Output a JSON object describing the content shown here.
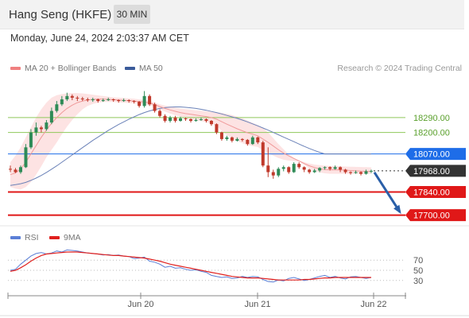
{
  "header": {
    "title": "Hang Seng (HKFE)",
    "timeframe": "30 MIN",
    "datetime": "Monday, June 24, 2024 2:03:37 AM CET"
  },
  "legend": {
    "ma20_label": "MA 20 + Bollinger Bands",
    "ma50_label": "MA 50",
    "ma20_color": "#f08080",
    "ma50_color": "#3a5b9a",
    "credit": "Research © 2024 Trading Central"
  },
  "rsi_legend": {
    "rsi_label": "RSI",
    "ma_label": "9MA",
    "rsi_color": "#5b7fd6",
    "ma_color": "#e0201e"
  },
  "chart_data": [
    {
      "type": "candlestick",
      "ylim": [
        17655,
        18520
      ],
      "x_ticks": [
        "Jun 20",
        "Jun 21",
        "Jun 22"
      ],
      "candles": [
        [
          17980,
          17975,
          18000,
          17960
        ],
        [
          17975,
          17960,
          17985,
          17955
        ],
        [
          17960,
          17990,
          18000,
          17950
        ],
        [
          17990,
          18110,
          18130,
          17985
        ],
        [
          18110,
          18200,
          18220,
          18100
        ],
        [
          18200,
          18230,
          18260,
          18180
        ],
        [
          18230,
          18220,
          18240,
          18200
        ],
        [
          18220,
          18260,
          18275,
          18210
        ],
        [
          18260,
          18330,
          18350,
          18250
        ],
        [
          18330,
          18370,
          18390,
          18320
        ],
        [
          18370,
          18400,
          18420,
          18360
        ],
        [
          18400,
          18420,
          18440,
          18390
        ],
        [
          18420,
          18410,
          18430,
          18395
        ],
        [
          18410,
          18405,
          18420,
          18390
        ],
        [
          18405,
          18400,
          18415,
          18390
        ],
        [
          18400,
          18395,
          18410,
          18385
        ],
        [
          18395,
          18400,
          18410,
          18385
        ],
        [
          18400,
          18390,
          18405,
          18380
        ],
        [
          18390,
          18395,
          18405,
          18385
        ],
        [
          18395,
          18400,
          18410,
          18390
        ],
        [
          18400,
          18395,
          18405,
          18385
        ],
        [
          18395,
          18390,
          18400,
          18380
        ],
        [
          18390,
          18395,
          18405,
          18385
        ],
        [
          18395,
          18390,
          18400,
          18380
        ],
        [
          18390,
          18385,
          18395,
          18375
        ],
        [
          18385,
          18360,
          18390,
          18350
        ],
        [
          18360,
          18420,
          18450,
          18350
        ],
        [
          18420,
          18370,
          18430,
          18360
        ],
        [
          18370,
          18330,
          18380,
          18320
        ],
        [
          18330,
          18300,
          18340,
          18290
        ],
        [
          18300,
          18270,
          18310,
          18260
        ],
        [
          18270,
          18290,
          18300,
          18260
        ],
        [
          18290,
          18270,
          18300,
          18260
        ],
        [
          18270,
          18285,
          18295,
          18265
        ],
        [
          18285,
          18280,
          18290,
          18270
        ],
        [
          18280,
          18270,
          18285,
          18260
        ],
        [
          18270,
          18275,
          18285,
          18265
        ],
        [
          18275,
          18280,
          18290,
          18270
        ],
        [
          18280,
          18270,
          18285,
          18260
        ],
        [
          18270,
          18250,
          18275,
          18240
        ],
        [
          18250,
          18200,
          18255,
          18190
        ],
        [
          18200,
          18160,
          18205,
          18150
        ],
        [
          18160,
          18170,
          18180,
          18150
        ],
        [
          18170,
          18150,
          18175,
          18140
        ],
        [
          18150,
          18160,
          18170,
          18145
        ],
        [
          18160,
          18155,
          18165,
          18145
        ],
        [
          18155,
          18130,
          18160,
          18120
        ],
        [
          18130,
          18170,
          18180,
          18125
        ],
        [
          18170,
          18140,
          18175,
          18130
        ],
        [
          18140,
          18000,
          18150,
          17990
        ],
        [
          18000,
          17960,
          18110,
          17930
        ],
        [
          17960,
          17940,
          17975,
          17920
        ],
        [
          17940,
          17980,
          17990,
          17930
        ],
        [
          17980,
          17990,
          18000,
          17965
        ],
        [
          17990,
          17960,
          17995,
          17950
        ],
        [
          17960,
          18010,
          18020,
          17955
        ],
        [
          18010,
          17990,
          18020,
          17980
        ],
        [
          17990,
          17975,
          17995,
          17960
        ],
        [
          17975,
          17960,
          17980,
          17950
        ],
        [
          17960,
          17970,
          17980,
          17955
        ],
        [
          17970,
          17985,
          17990,
          17960
        ],
        [
          17985,
          17990,
          17995,
          17975
        ],
        [
          17990,
          17980,
          17995,
          17970
        ],
        [
          17980,
          17990,
          18000,
          17975
        ],
        [
          17990,
          17975,
          17995,
          17960
        ],
        [
          17975,
          17960,
          17980,
          17950
        ],
        [
          17960,
          17955,
          17965,
          17945
        ],
        [
          17955,
          17960,
          17970,
          17950
        ],
        [
          17960,
          17950,
          17965,
          17940
        ],
        [
          17950,
          17965,
          17975,
          17945
        ],
        [
          17965,
          17968,
          17975,
          17955
        ]
      ],
      "ma20": [
        17945,
        17955,
        17980,
        18020,
        18070,
        18120,
        18170,
        18215,
        18255,
        18290,
        18320,
        18345,
        18365,
        18380,
        18390,
        18396,
        18400,
        18402,
        18402,
        18400,
        18398,
        18396,
        18394,
        18392,
        18390,
        18386,
        18384,
        18378,
        18368,
        18356,
        18345,
        18336,
        18328,
        18320,
        18314,
        18310,
        18305,
        18300,
        18296,
        18290,
        18280,
        18265,
        18250,
        18236,
        18222,
        18210,
        18198,
        18190,
        18180,
        18160,
        18140,
        18118,
        18095,
        18075,
        18058,
        18043,
        18028,
        18012,
        17998,
        17988,
        17980,
        17976,
        17974,
        17974,
        17973,
        17972,
        17970,
        17968,
        17966,
        17965,
        17964
      ],
      "bb_upper": [
        18020,
        18060,
        18110,
        18170,
        18230,
        18290,
        18340,
        18380,
        18410,
        18425,
        18432,
        18436,
        18438,
        18438,
        18436,
        18432,
        18428,
        18424,
        18420,
        18416,
        18412,
        18410,
        18408,
        18406,
        18404,
        18400,
        18396,
        18390,
        18380,
        18370,
        18362,
        18356,
        18350,
        18345,
        18341,
        18338,
        18334,
        18331,
        18328,
        18325,
        18322,
        18318,
        18312,
        18305,
        18296,
        18285,
        18272,
        18258,
        18244,
        18228,
        18200,
        18165,
        18130,
        18098,
        18068,
        18045,
        18030,
        18020,
        18012,
        18006,
        18002,
        17999,
        17997,
        17996,
        17995,
        17994,
        17993,
        17992,
        17991,
        17990,
        17989
      ],
      "bb_lower": [
        17870,
        17860,
        17855,
        17870,
        17900,
        17945,
        17995,
        18050,
        18095,
        18140,
        18190,
        18235,
        18275,
        18310,
        18340,
        18360,
        18372,
        18380,
        18384,
        18384,
        18384,
        18382,
        18380,
        18378,
        18376,
        18372,
        18370,
        18364,
        18354,
        18340,
        18326,
        18314,
        18304,
        18295,
        18287,
        18280,
        18274,
        18268,
        18262,
        18255,
        18240,
        18210,
        18185,
        18165,
        18148,
        18135,
        18124,
        18118,
        18112,
        18092,
        18075,
        18060,
        18045,
        18035,
        18030,
        18027,
        18024,
        18004,
        17982,
        17968,
        17958,
        17953,
        17950,
        17950,
        17950,
        17950,
        17950,
        17950,
        17950,
        17950,
        17950
      ],
      "ma50": [
        17880,
        17884,
        17890,
        17898,
        17910,
        17924,
        17940,
        17958,
        17978,
        17998,
        18020,
        18042,
        18064,
        18086,
        18108,
        18130,
        18152,
        18172,
        18192,
        18212,
        18230,
        18248,
        18264,
        18280,
        18294,
        18308,
        18320,
        18330,
        18338,
        18345,
        18350,
        18353,
        18354,
        18354,
        18352,
        18349,
        18345,
        18340,
        18334,
        18327,
        18320,
        18312,
        18303,
        18294,
        18285,
        18275,
        18264,
        18252,
        18240,
        18227,
        18214,
        18200,
        18186,
        18172,
        18158,
        18144,
        18130,
        18116,
        18103,
        18091,
        18080,
        18070,
        18070,
        18070,
        18070,
        18070,
        18070,
        18070,
        18070,
        18070,
        18070
      ],
      "levels": [
        {
          "value": 18290,
          "label": "18290.00",
          "color": "#8fc85a",
          "style": "thin"
        },
        {
          "value": 18200,
          "label": "18200.00",
          "color": "#8fc85a",
          "style": "thin"
        },
        {
          "value": 18070,
          "label": "18070.00",
          "color": "#1e6de8",
          "style": "main"
        },
        {
          "value": 17968,
          "label": "17968.00",
          "color": "#333333",
          "style": "current"
        },
        {
          "value": 17840,
          "label": "17840.00",
          "color": "#e01818",
          "style": "thick"
        },
        {
          "value": 17700,
          "label": "17700.00",
          "color": "#e01818",
          "style": "thick"
        }
      ],
      "projection": {
        "from": 17968,
        "to": 17700
      },
      "up_color": "#2e8b57",
      "down_color": "#c0392b"
    },
    {
      "type": "line",
      "ylim": [
        0,
        100
      ],
      "levels": [
        70,
        50,
        30
      ],
      "rsi": [
        50,
        52,
        62,
        70,
        78,
        83,
        85,
        82,
        84,
        88,
        86,
        90,
        89,
        88,
        86,
        84,
        83,
        82,
        80,
        81,
        79,
        80,
        78,
        77,
        73,
        74,
        76,
        68,
        66,
        62,
        56,
        58,
        54,
        55,
        52,
        50,
        51,
        48,
        46,
        40,
        38,
        36,
        37,
        34,
        35,
        38,
        36,
        38,
        37,
        32,
        28,
        27,
        31,
        29,
        34,
        36,
        33,
        30,
        32,
        35,
        38,
        40,
        36,
        38,
        35,
        33,
        37,
        38,
        36,
        34,
        36
      ],
      "ma9": [
        48,
        50,
        55,
        61,
        68,
        74,
        79,
        82,
        83,
        84,
        85,
        86,
        86,
        86,
        85,
        84,
        83,
        82,
        81,
        80,
        79,
        79,
        78,
        77,
        76,
        75,
        74,
        72,
        70,
        68,
        65,
        62,
        60,
        58,
        56,
        54,
        52,
        50,
        48,
        46,
        44,
        42,
        40,
        38,
        37,
        36,
        35,
        35,
        35,
        34,
        33,
        32,
        31,
        31,
        31,
        31,
        31,
        32,
        32,
        33,
        34,
        35,
        35,
        36,
        36,
        36,
        36,
        36,
        36,
        36,
        36
      ]
    }
  ]
}
